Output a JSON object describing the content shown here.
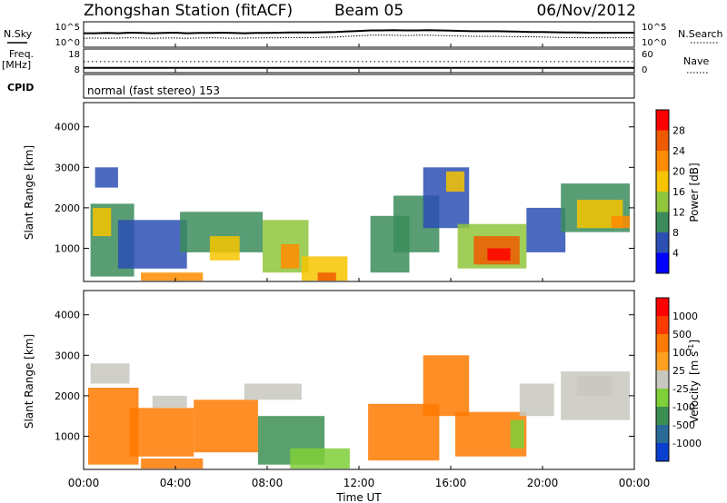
{
  "header": {
    "station": "Zhongshan Station (fitACF)",
    "beam": "Beam 05",
    "date": "06/Nov/2012"
  },
  "chart_data": [
    {
      "id": "noise",
      "type": "line",
      "left_label": "N.Sky",
      "right_label": "N.Search",
      "y_ticks_left": [
        "10^5",
        "10^0"
      ],
      "y_ticks_right": [
        "10^5",
        "10^0"
      ],
      "series_sky": [
        0.55,
        0.55,
        0.56,
        0.55,
        0.57,
        0.56,
        0.55,
        0.56,
        0.57,
        0.55,
        0.56,
        0.56,
        0.57,
        0.56,
        0.55,
        0.56,
        0.56,
        0.57,
        0.58,
        0.58,
        0.58,
        0.59,
        0.6,
        0.62,
        0.64,
        0.66,
        0.66,
        0.67,
        0.66,
        0.66,
        0.67,
        0.66,
        0.65,
        0.64,
        0.63,
        0.63,
        0.63,
        0.62,
        0.61,
        0.6,
        0.6,
        0.59,
        0.58,
        0.58,
        0.57,
        0.57,
        0.57,
        0.57,
        0.57
      ],
      "series_search": [
        0.35,
        0.36,
        0.35,
        0.36,
        0.37,
        0.36,
        0.35,
        0.36,
        0.36,
        0.35,
        0.36,
        0.37,
        0.36,
        0.35,
        0.36,
        0.36,
        0.37,
        0.37,
        0.38,
        0.38,
        0.38,
        0.39,
        0.4,
        0.43,
        0.45,
        0.47,
        0.47,
        0.47,
        0.46,
        0.47,
        0.47,
        0.46,
        0.45,
        0.44,
        0.43,
        0.43,
        0.43,
        0.42,
        0.41,
        0.41,
        0.4,
        0.39,
        0.38,
        0.38,
        0.37,
        0.37,
        0.37,
        0.37,
        0.37
      ]
    },
    {
      "id": "freq",
      "type": "line",
      "left_label_1": "Freq.",
      "left_label_2": "[MHz]",
      "right_label": "Nave",
      "y_ticks_left": [
        "18",
        "8"
      ],
      "y_ticks_right": [
        "60",
        "0"
      ],
      "freq_mhz": 10,
      "nave": 28
    },
    {
      "id": "cpid",
      "label": "CPID",
      "text": "normal (fast stereo) 153"
    },
    {
      "id": "power",
      "type": "heatmap",
      "ylabel": "Slant Range [km]",
      "y_ticks": [
        "1000",
        "2000",
        "3000",
        "4000"
      ],
      "y_range": [
        180,
        4600
      ],
      "x_range_hours": [
        0,
        24
      ],
      "colorbar_label": "Power [dB]",
      "colorbar_ticks": [
        "4",
        "8",
        "12",
        "16",
        "20",
        "24",
        "28"
      ],
      "colorbar_colors": [
        "#0000ff",
        "#2c4fb4",
        "#3b8c5a",
        "#8fc63c",
        "#f6c400",
        "#ff8c00",
        "#ee5a00",
        "#ff0000"
      ],
      "regions": [
        {
          "t0": 0.3,
          "t1": 2.2,
          "r0": 300,
          "r1": 2100,
          "level": 2
        },
        {
          "t0": 0.4,
          "t1": 1.2,
          "r0": 1300,
          "r1": 2000,
          "level": 4
        },
        {
          "t0": 0.5,
          "t1": 1.5,
          "r0": 2500,
          "r1": 3000,
          "level": 1
        },
        {
          "t0": 1.5,
          "t1": 4.5,
          "r0": 500,
          "r1": 1700,
          "level": 1
        },
        {
          "t0": 2.5,
          "t1": 5.2,
          "r0": 200,
          "r1": 400,
          "level": 5
        },
        {
          "t0": 4.2,
          "t1": 7.8,
          "r0": 900,
          "r1": 1900,
          "level": 2
        },
        {
          "t0": 5.5,
          "t1": 6.8,
          "r0": 700,
          "r1": 1300,
          "level": 4
        },
        {
          "t0": 7.8,
          "t1": 9.8,
          "r0": 400,
          "r1": 1700,
          "level": 3
        },
        {
          "t0": 8.6,
          "t1": 9.4,
          "r0": 500,
          "r1": 1100,
          "level": 5
        },
        {
          "t0": 9.5,
          "t1": 11.5,
          "r0": 200,
          "r1": 800,
          "level": 4
        },
        {
          "t0": 10.2,
          "t1": 11.0,
          "r0": 200,
          "r1": 400,
          "level": 6
        },
        {
          "t0": 12.5,
          "t1": 14.2,
          "r0": 400,
          "r1": 1800,
          "level": 2
        },
        {
          "t0": 13.5,
          "t1": 15.5,
          "r0": 900,
          "r1": 2300,
          "level": 2
        },
        {
          "t0": 14.8,
          "t1": 16.8,
          "r0": 1500,
          "r1": 3000,
          "level": 1
        },
        {
          "t0": 15.8,
          "t1": 16.6,
          "r0": 2400,
          "r1": 2900,
          "level": 4
        },
        {
          "t0": 16.3,
          "t1": 19.3,
          "r0": 500,
          "r1": 1600,
          "level": 3
        },
        {
          "t0": 17.0,
          "t1": 19.0,
          "r0": 600,
          "r1": 1300,
          "level": 6
        },
        {
          "t0": 17.6,
          "t1": 18.6,
          "r0": 700,
          "r1": 1000,
          "level": 7
        },
        {
          "t0": 19.3,
          "t1": 21.0,
          "r0": 900,
          "r1": 2000,
          "level": 1
        },
        {
          "t0": 20.8,
          "t1": 23.8,
          "r0": 1400,
          "r1": 2600,
          "level": 2
        },
        {
          "t0": 21.5,
          "t1": 23.5,
          "r0": 1500,
          "r1": 2200,
          "level": 4
        },
        {
          "t0": 23.0,
          "t1": 23.8,
          "r0": 1500,
          "r1": 1800,
          "level": 5
        }
      ]
    },
    {
      "id": "velocity",
      "type": "heatmap",
      "ylabel": "Slant Range [km]",
      "y_ticks": [
        "1000",
        "2000",
        "3000",
        "4000"
      ],
      "y_range": [
        180,
        4600
      ],
      "x_ticks": [
        "00:00",
        "04:00",
        "08:00",
        "12:00",
        "16:00",
        "20:00",
        "00:00"
      ],
      "x_range_hours": [
        0,
        24
      ],
      "xlabel": "Time UT",
      "colorbar_label": "Velocity",
      "colorbar_unit": "[m s",
      "colorbar_unit_sup": "-1",
      "colorbar_unit_end": "]",
      "colorbar_ticks": [
        "1000",
        "500",
        "100",
        "25",
        "-25",
        "-100",
        "-500",
        "-1000"
      ],
      "colorbar_colors": [
        "#0a3fd0",
        "#2a6a99",
        "#3c8f52",
        "#7fcf38",
        "#c8c8c0",
        "#ffa020",
        "#ff7a00",
        "#ff3a00",
        "#ff0000"
      ],
      "regions": [
        {
          "t0": 0.2,
          "t1": 2.4,
          "r0": 300,
          "r1": 2200,
          "level": 6
        },
        {
          "t0": 0.3,
          "t1": 2.0,
          "r0": 2300,
          "r1": 2800,
          "level": 4
        },
        {
          "t0": 2.0,
          "t1": 4.8,
          "r0": 500,
          "r1": 1700,
          "level": 6
        },
        {
          "t0": 2.5,
          "t1": 5.2,
          "r0": 200,
          "r1": 450,
          "level": 6
        },
        {
          "t0": 3.0,
          "t1": 4.5,
          "r0": 1700,
          "r1": 2000,
          "level": 4
        },
        {
          "t0": 4.8,
          "t1": 7.6,
          "r0": 600,
          "r1": 1900,
          "level": 6
        },
        {
          "t0": 7.0,
          "t1": 9.5,
          "r0": 1900,
          "r1": 2300,
          "level": 4
        },
        {
          "t0": 7.6,
          "t1": 10.5,
          "r0": 300,
          "r1": 1500,
          "level": 2
        },
        {
          "t0": 9.0,
          "t1": 11.6,
          "r0": 200,
          "r1": 700,
          "level": 3
        },
        {
          "t0": 12.4,
          "t1": 15.5,
          "r0": 400,
          "r1": 1800,
          "level": 6
        },
        {
          "t0": 14.8,
          "t1": 16.8,
          "r0": 1500,
          "r1": 3000,
          "level": 6
        },
        {
          "t0": 16.2,
          "t1": 19.3,
          "r0": 500,
          "r1": 1600,
          "level": 6
        },
        {
          "t0": 18.6,
          "t1": 19.2,
          "r0": 700,
          "r1": 1400,
          "level": 3
        },
        {
          "t0": 19.0,
          "t1": 20.5,
          "r0": 1500,
          "r1": 2300,
          "level": 4
        },
        {
          "t0": 20.8,
          "t1": 23.8,
          "r0": 1400,
          "r1": 2600,
          "level": 4
        },
        {
          "t0": 21.5,
          "t1": 23.0,
          "r0": 2000,
          "r1": 2500,
          "level": 4
        }
      ]
    }
  ]
}
